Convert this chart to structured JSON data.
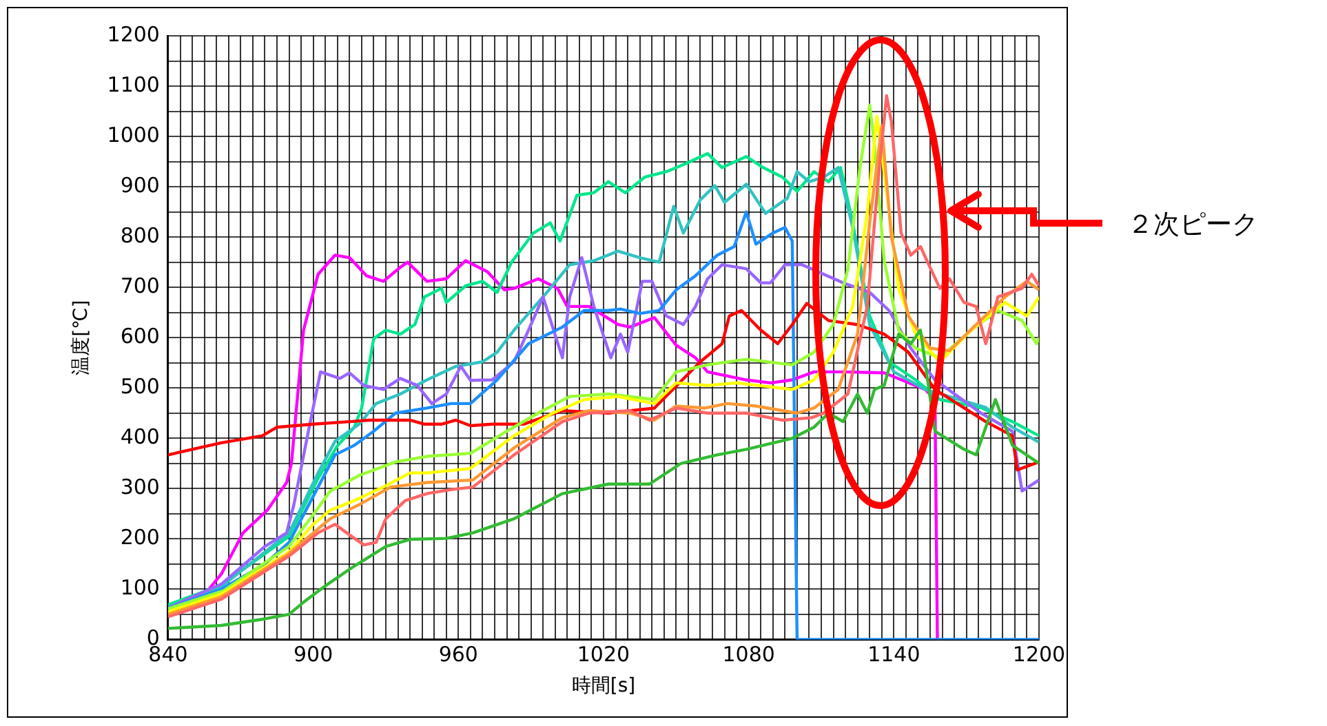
{
  "chart_data": {
    "type": "line",
    "xlabel": "時間[s]",
    "ylabel": "温度[℃]",
    "annotations": [
      "２次ピーク"
    ],
    "xlim": [
      840,
      1200
    ],
    "ylim": [
      0,
      1200
    ],
    "grid": true,
    "xticks": [
      840,
      {
        "value": 845,
        "label": null
      },
      {
        "value": 850,
        "label": null
      },
      {
        "value": 855,
        "label": null
      },
      {
        "value": 860,
        "label": null
      },
      {
        "value": 865,
        "label": null
      },
      {
        "value": 870,
        "label": null
      },
      {
        "value": 875,
        "label": null
      },
      {
        "value": 880,
        "label": null
      },
      {
        "value": 885,
        "label": null
      },
      {
        "value": 890,
        "label": null
      },
      {
        "value": 895,
        "label": null
      },
      900,
      {
        "value": 905,
        "label": null
      },
      {
        "value": 910,
        "label": null
      },
      {
        "value": 915,
        "label": null
      },
      {
        "value": 920,
        "label": null
      },
      {
        "value": 925,
        "label": null
      },
      {
        "value": 930,
        "label": null
      },
      {
        "value": 935,
        "label": null
      },
      {
        "value": 940,
        "label": null
      },
      {
        "value": 945,
        "label": null
      },
      {
        "value": 950,
        "label": null
      },
      {
        "value": 955,
        "label": null
      },
      960,
      {
        "value": 965,
        "label": null
      },
      {
        "value": 970,
        "label": null
      },
      {
        "value": 975,
        "label": null
      },
      {
        "value": 980,
        "label": null
      },
      {
        "value": 985,
        "label": null
      },
      {
        "value": 990,
        "label": null
      },
      {
        "value": 995,
        "label": null
      },
      {
        "value": 1000,
        "label": null
      },
      {
        "value": 1005,
        "label": null
      },
      {
        "value": 1010,
        "label": null
      },
      {
        "value": 1015,
        "label": null
      },
      1020,
      {
        "value": 1025,
        "label": null
      },
      {
        "value": 1030,
        "label": null
      },
      {
        "value": 1035,
        "label": null
      },
      {
        "value": 1040,
        "label": null
      },
      {
        "value": 1045,
        "label": null
      },
      {
        "value": 1050,
        "label": null
      },
      {
        "value": 1055,
        "label": null
      },
      {
        "value": 1060,
        "label": null
      },
      {
        "value": 1065,
        "label": null
      },
      {
        "value": 1070,
        "label": null
      },
      {
        "value": 1075,
        "label": null
      },
      1080,
      {
        "value": 1085,
        "label": null
      },
      {
        "value": 1090,
        "label": null
      },
      {
        "value": 1095,
        "label": null
      },
      {
        "value": 1100,
        "label": null
      },
      {
        "value": 1105,
        "label": null
      },
      {
        "value": 1110,
        "label": null
      },
      {
        "value": 1115,
        "label": null
      },
      {
        "value": 1120,
        "label": null
      },
      {
        "value": 1125,
        "label": null
      },
      {
        "value": 1130,
        "label": null
      },
      {
        "value": 1135,
        "label": null
      },
      1140,
      {
        "value": 1145,
        "label": null
      },
      {
        "value": 1150,
        "label": null
      },
      {
        "value": 1155,
        "label": null
      },
      {
        "value": 1160,
        "label": null
      },
      {
        "value": 1165,
        "label": null
      },
      {
        "value": 1170,
        "label": null
      },
      {
        "value": 1175,
        "label": null
      },
      {
        "value": 1180,
        "label": null
      },
      {
        "value": 1185,
        "label": null
      },
      {
        "value": 1190,
        "label": null
      },
      {
        "value": 1195,
        "label": null
      },
      1200
    ],
    "yticks": [
      0,
      {
        "value": 50,
        "label": null
      },
      100,
      {
        "value": 150,
        "label": null
      },
      200,
      {
        "value": 250,
        "label": null
      },
      300,
      {
        "value": 350,
        "label": null
      },
      400,
      {
        "value": 450,
        "label": null
      },
      500,
      {
        "value": 550,
        "label": null
      },
      600,
      {
        "value": 650,
        "label": null
      },
      700,
      {
        "value": 750,
        "label": null
      },
      800,
      {
        "value": 850,
        "label": null
      },
      900,
      {
        "value": 950,
        "label": null
      },
      1000,
      {
        "value": 1050,
        "label": null
      },
      1100,
      {
        "value": 1150,
        "label": null
      },
      1200
    ],
    "series": [
      {
        "color": "#33bb33",
        "x": [
          840,
          862,
          880,
          890,
          896,
          906,
          917,
          930,
          940,
          955,
          966,
          983,
          1003,
          1022,
          1039,
          1052,
          1067,
          1079,
          1098,
          1107,
          1113,
          1119,
          1125,
          1129,
          1132,
          1136,
          1142,
          1147,
          1151,
          1157,
          1169,
          1174,
          1182,
          1189,
          1200
        ],
        "values": [
          22,
          28,
          41,
          50,
          74,
          110,
          146,
          185,
          199,
          201,
          212,
          240,
          290,
          309,
          309,
          350,
          367,
          378,
          400,
          422,
          450,
          433,
          488,
          450,
          497,
          505,
          607,
          588,
          615,
          414,
          378,
          367,
          477,
          386,
          350
        ]
      },
      {
        "color": "#ff6666",
        "x": [
          840,
          862,
          890,
          902,
          909,
          917,
          921,
          926,
          930,
          938,
          947,
          957,
          966,
          983,
          1003,
          1014,
          1031,
          1039,
          1050,
          1063,
          1079,
          1094,
          1106,
          1111,
          1121,
          1129,
          1134,
          1137,
          1139,
          1143,
          1147,
          1151,
          1159,
          1163,
          1169,
          1174,
          1178,
          1183,
          1193,
          1197,
          1200
        ],
        "values": [
          45,
          80,
          166,
          212,
          229,
          201,
          188,
          193,
          240,
          276,
          290,
          298,
          303,
          367,
          433,
          450,
          455,
          436,
          460,
          450,
          450,
          436,
          441,
          450,
          488,
          662,
          938,
          1081,
          1029,
          808,
          764,
          781,
          698,
          717,
          670,
          662,
          588,
          681,
          698,
          726,
          703
        ]
      },
      {
        "color": "#ff9933",
        "x": [
          840,
          862,
          890,
          900,
          907,
          919,
          932,
          947,
          966,
          983,
          1003,
          1014,
          1031,
          1041,
          1050,
          1062,
          1071,
          1083,
          1100,
          1107,
          1117,
          1125,
          1130,
          1135,
          1139,
          1146,
          1155,
          1163,
          1174,
          1186,
          1195,
          1200
        ],
        "values": [
          50,
          85,
          171,
          212,
          240,
          268,
          303,
          312,
          317,
          381,
          441,
          455,
          450,
          436,
          464,
          460,
          469,
          464,
          450,
          460,
          497,
          607,
          828,
          1021,
          800,
          643,
          579,
          574,
          626,
          681,
          712,
          695
        ]
      },
      {
        "color": "#ffff00",
        "x": [
          840,
          862,
          890,
          900,
          907,
          917,
          929,
          940,
          947,
          965,
          983,
          999,
          1012,
          1026,
          1041,
          1050,
          1063,
          1075,
          1098,
          1107,
          1115,
          1123,
          1129,
          1133,
          1137,
          1142,
          1149,
          1159,
          1172,
          1186,
          1195,
          1200
        ],
        "values": [
          55,
          90,
          174,
          229,
          257,
          276,
          303,
          331,
          331,
          340,
          405,
          450,
          477,
          483,
          469,
          510,
          505,
          510,
          497,
          516,
          571,
          662,
          847,
          1040,
          891,
          698,
          607,
          552,
          615,
          670,
          643,
          681
        ]
      },
      {
        "color": "#99ff33",
        "x": [
          840,
          863,
          890,
          900,
          907,
          919,
          934,
          947,
          965,
          980,
          993,
          1006,
          1022,
          1041,
          1050,
          1063,
          1079,
          1098,
          1107,
          1115,
          1121,
          1126,
          1130,
          1132,
          1136,
          1142,
          1149,
          1159,
          1172,
          1183,
          1193,
          1199,
          1200
        ],
        "values": [
          61,
          97,
          185,
          248,
          295,
          326,
          353,
          364,
          370,
          414,
          450,
          483,
          488,
          477,
          532,
          546,
          557,
          546,
          571,
          626,
          736,
          938,
          1062,
          985,
          753,
          615,
          579,
          560,
          615,
          654,
          634,
          588,
          600
        ]
      },
      {
        "color": "#ff0000",
        "x": [
          840,
          862,
          879,
          885,
          900,
          915,
          923,
          940,
          946,
          953,
          959,
          965,
          974,
          987,
          1003,
          1022,
          1041,
          1060,
          1069,
          1072,
          1077,
          1085,
          1092,
          1098,
          1104,
          1113,
          1125,
          1136,
          1146,
          1157,
          1178,
          1189,
          1191,
          1200
        ],
        "values": [
          367,
          391,
          405,
          422,
          428,
          433,
          436,
          436,
          428,
          428,
          436,
          425,
          428,
          428,
          455,
          450,
          460,
          552,
          588,
          643,
          654,
          615,
          588,
          626,
          668,
          634,
          626,
          607,
          571,
          497,
          433,
          405,
          337,
          353
        ]
      },
      {
        "color": "#1e8fff",
        "x": [
          840,
          862,
          880,
          890,
          902,
          909,
          917,
          925,
          934,
          947,
          957,
          965,
          976,
          989,
          1003,
          1012,
          1022,
          1027,
          1035,
          1043,
          1050,
          1058,
          1067,
          1074,
          1079,
          1083,
          1090,
          1095,
          1098,
          1100,
          1200
        ],
        "values": [
          62,
          100,
          150,
          193,
          303,
          367,
          386,
          414,
          450,
          460,
          469,
          469,
          516,
          588,
          621,
          654,
          654,
          657,
          648,
          654,
          695,
          723,
          764,
          781,
          850,
          786,
          808,
          819,
          792,
          0,
          0
        ]
      },
      {
        "color": "#9966ff",
        "x": [
          840,
          862,
          880,
          889,
          892,
          898,
          903,
          911,
          915,
          921,
          929,
          936,
          943,
          949,
          955,
          961,
          965,
          974,
          983,
          989,
          995,
          1003,
          1006,
          1011,
          1016,
          1023,
          1027,
          1030,
          1036,
          1040,
          1046,
          1053,
          1058,
          1063,
          1069,
          1079,
          1085,
          1089,
          1095,
          1102,
          1119,
          1130,
          1138,
          1147,
          1157,
          1176,
          1189,
          1193,
          1200
        ],
        "values": [
          63,
          110,
          185,
          212,
          268,
          414,
          532,
          519,
          530,
          505,
          497,
          519,
          505,
          469,
          488,
          543,
          515,
          516,
          552,
          615,
          681,
          560,
          681,
          759,
          662,
          560,
          607,
          571,
          712,
          712,
          643,
          626,
          662,
          717,
          745,
          737,
          709,
          709,
          745,
          745,
          709,
          690,
          654,
          579,
          516,
          450,
          414,
          295,
          317
        ]
      },
      {
        "color": "#33c2c2",
        "x": [
          840,
          862,
          890,
          902,
          909,
          919,
          926,
          936,
          947,
          959,
          970,
          976,
          983,
          995,
          1006,
          1016,
          1026,
          1035,
          1043,
          1049,
          1053,
          1060,
          1066,
          1070,
          1079,
          1087,
          1096,
          1100,
          1105,
          1111,
          1117,
          1123,
          1130,
          1140,
          1153,
          1178,
          1189,
          1200
        ],
        "values": [
          63,
          105,
          212,
          331,
          394,
          428,
          469,
          488,
          516,
          543,
          552,
          571,
          615,
          681,
          745,
          753,
          772,
          759,
          750,
          861,
          808,
          874,
          902,
          869,
          905,
          847,
          877,
          930,
          910,
          919,
          938,
          819,
          626,
          532,
          497,
          461,
          422,
          392
        ]
      },
      {
        "color": "#00e68c",
        "x": [
          840,
          862,
          890,
          902,
          910,
          917,
          920,
          925,
          930,
          936,
          942,
          946,
          953,
          955,
          963,
          970,
          976,
          982,
          991,
          998,
          1002,
          1009,
          1016,
          1022,
          1029,
          1037,
          1046,
          1054,
          1063,
          1069,
          1079,
          1086,
          1094,
          1100,
          1107,
          1113,
          1118,
          1123,
          1130,
          1138,
          1149,
          1159,
          1176,
          1189,
          1200
        ],
        "values": [
          69,
          108,
          205,
          320,
          385,
          422,
          460,
          598,
          615,
          607,
          626,
          681,
          698,
          670,
          703,
          712,
          690,
          750,
          808,
          828,
          792,
          883,
          888,
          910,
          888,
          919,
          930,
          946,
          966,
          938,
          960,
          938,
          919,
          891,
          930,
          910,
          938,
          828,
          643,
          552,
          516,
          477,
          461,
          433,
          405
        ]
      },
      {
        "color": "#ff00ff",
        "x": [
          840,
          854,
          862,
          871,
          881,
          889,
          891,
          896,
          902,
          909,
          915,
          922,
          929,
          936,
          939,
          947,
          955,
          963,
          972,
          979,
          983,
          993,
          1001,
          1005,
          1014,
          1026,
          1031,
          1041,
          1050,
          1058,
          1063,
          1079,
          1089,
          1098,
          1107,
          1119,
          1136,
          1153,
          1157,
          1158
        ],
        "values": [
          63,
          83,
          130,
          212,
          257,
          312,
          350,
          615,
          726,
          764,
          759,
          723,
          712,
          740,
          750,
          712,
          717,
          753,
          731,
          695,
          698,
          717,
          698,
          662,
          662,
          626,
          621,
          640,
          585,
          560,
          532,
          516,
          510,
          516,
          532,
          532,
          530,
          497,
          477,
          0
        ]
      }
    ]
  }
}
